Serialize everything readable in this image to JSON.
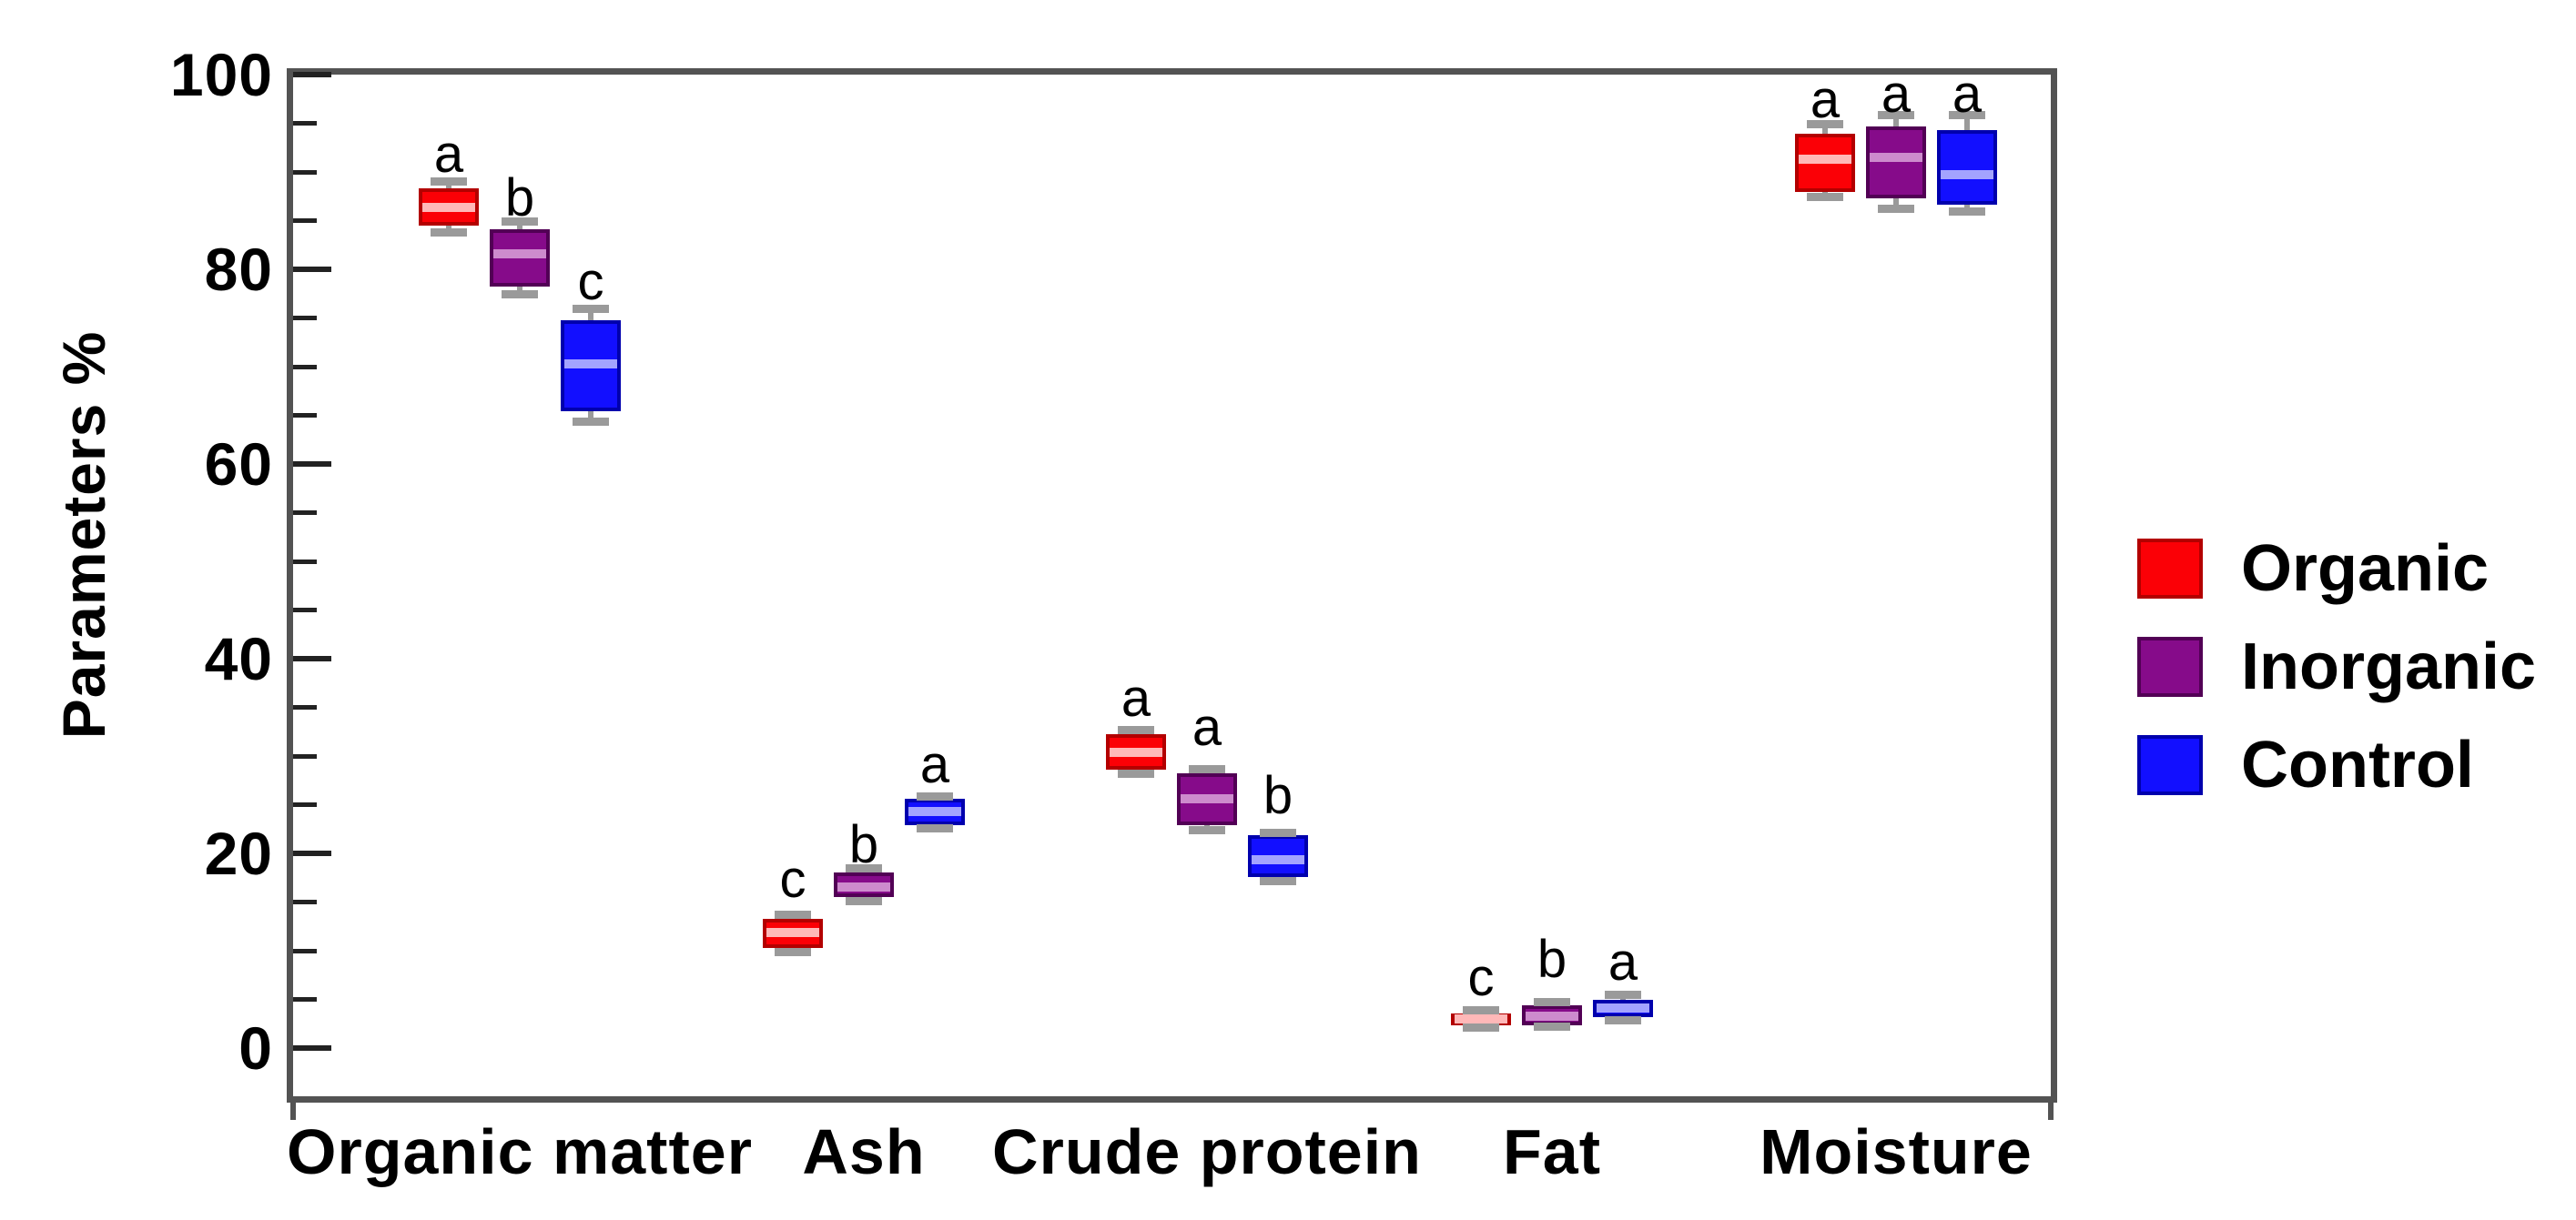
{
  "chart_data": {
    "type": "grouped_boxplot",
    "title": "",
    "xlabel": "",
    "ylabel": "Parameters %",
    "ylim": [
      -5,
      100
    ],
    "y_major_ticks": [
      0,
      20,
      40,
      60,
      80,
      100
    ],
    "y_minor_step": 5,
    "grid": false,
    "legend_position": "right-outside",
    "categories": [
      "Organic matter",
      "Ash",
      "Crude protein",
      "Fat",
      "Moisture"
    ],
    "series": [
      {
        "name": "Organic",
        "fill": "#fb0006",
        "edge": "#b30000",
        "median_color": "#ffb8b8",
        "boxes": [
          {
            "category": "Organic matter",
            "low": 83.8,
            "q1": 84.5,
            "median": 86.4,
            "q3": 88.3,
            "high": 89.0,
            "letter": "a",
            "letter_y": 91.8
          },
          {
            "category": "Ash",
            "low": 9.9,
            "q1": 10.3,
            "median": 11.9,
            "q3": 13.3,
            "high": 13.7,
            "letter": "c",
            "letter_y": 17.3
          },
          {
            "category": "Crude protein",
            "low": 28.2,
            "q1": 28.6,
            "median": 30.4,
            "q3": 32.3,
            "high": 32.7,
            "letter": "a",
            "letter_y": 35.9
          },
          {
            "category": "Fat",
            "low": 2.1,
            "q1": 2.4,
            "median": 3.0,
            "q3": 3.6,
            "high": 3.9,
            "letter": "c",
            "letter_y": 7.2
          },
          {
            "category": "Moisture",
            "low": 87.4,
            "q1": 87.9,
            "median": 91.3,
            "q3": 93.9,
            "high": 94.9,
            "letter": "a",
            "letter_y": 97.4
          }
        ]
      },
      {
        "name": "Inorganic",
        "fill": "#860b8a",
        "edge": "#520055",
        "median_color": "#cd8bcd",
        "boxes": [
          {
            "category": "Organic matter",
            "low": 77.4,
            "q1": 78.2,
            "median": 81.6,
            "q3": 84.1,
            "high": 84.9,
            "letter": "b",
            "letter_y": 87.3
          },
          {
            "category": "Ash",
            "low": 15.1,
            "q1": 15.5,
            "median": 16.6,
            "q3": 18.1,
            "high": 18.5,
            "letter": "b",
            "letter_y": 20.9
          },
          {
            "category": "Crude protein",
            "low": 22.4,
            "q1": 22.9,
            "median": 25.6,
            "q3": 28.2,
            "high": 28.7,
            "letter": "a",
            "letter_y": 32.9
          },
          {
            "category": "Fat",
            "low": 2.2,
            "q1": 2.4,
            "median": 3.3,
            "q3": 4.4,
            "high": 4.7,
            "letter": "b",
            "letter_y": 9.1
          },
          {
            "category": "Moisture",
            "low": 86.2,
            "q1": 87.3,
            "median": 91.5,
            "q3": 94.7,
            "high": 95.8,
            "letter": "a",
            "letter_y": 97.9
          }
        ]
      },
      {
        "name": "Control",
        "fill": "#120fff",
        "edge": "#0000ad",
        "median_color": "#a3a3ff",
        "boxes": [
          {
            "category": "Organic matter",
            "low": 64.4,
            "q1": 65.4,
            "median": 70.3,
            "q3": 74.8,
            "high": 75.9,
            "letter": "c",
            "letter_y": 78.7
          },
          {
            "category": "Ash",
            "low": 22.6,
            "q1": 22.9,
            "median": 24.3,
            "q3": 25.6,
            "high": 25.9,
            "letter": "a",
            "letter_y": 29.1
          },
          {
            "category": "Crude protein",
            "low": 17.2,
            "q1": 17.6,
            "median": 19.4,
            "q3": 21.9,
            "high": 22.1,
            "letter": "b",
            "letter_y": 25.9
          },
          {
            "category": "Fat",
            "low": 2.9,
            "q1": 3.2,
            "median": 4.1,
            "q3": 5.0,
            "high": 5.5,
            "letter": "a",
            "letter_y": 8.8
          },
          {
            "category": "Moisture",
            "low": 85.9,
            "q1": 86.6,
            "median": 89.7,
            "q3": 94.3,
            "high": 95.8,
            "letter": "a",
            "letter_y": 97.9
          }
        ]
      }
    ],
    "legend": [
      "Organic",
      "Inorganic",
      "Control"
    ]
  },
  "style_colors": {
    "spine": "#535353",
    "tick": "#222222",
    "whisker": "#9a9a9a",
    "text": "#000000",
    "background": "#ffffff"
  }
}
